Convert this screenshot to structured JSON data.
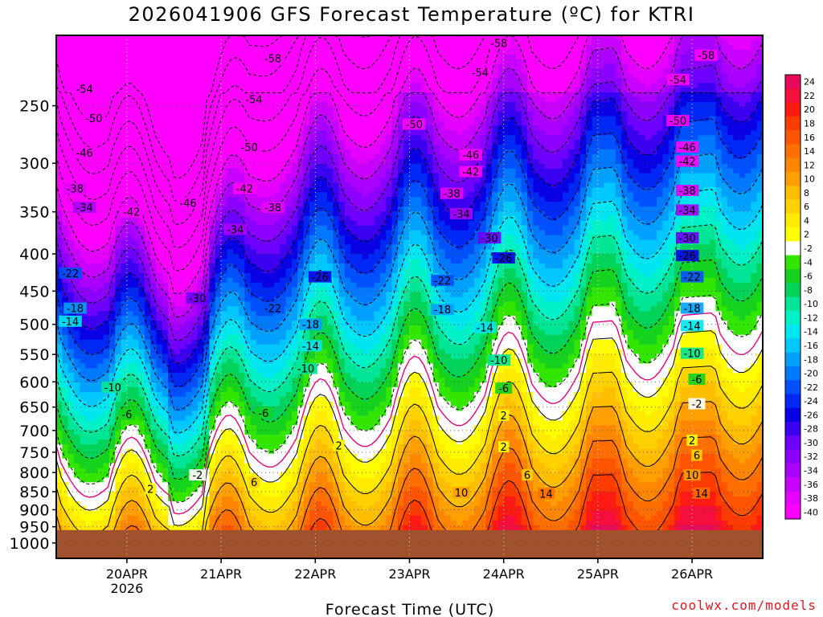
{
  "chart_data": {
    "type": "heatmap",
    "title": "2026041906 GFS Forecast Temperature (ºC) for KTRI",
    "xlabel": "Forecast Time (UTC)",
    "ylabel": "",
    "x_range": [
      "2026-04-19 06Z",
      "2026-04-26 18Z"
    ],
    "y_range_hPa": [
      1000,
      200
    ],
    "y_ticks": [
      "250",
      "300",
      "350",
      "400",
      "450",
      "500",
      "550",
      "600",
      "650",
      "700",
      "750",
      "800",
      "850",
      "900",
      "950",
      "1000"
    ],
    "x_ticks": [
      {
        "label": "20APR",
        "sublabel": "2026",
        "days": 0.75
      },
      {
        "label": "21APR",
        "days": 1.75
      },
      {
        "label": "22APR",
        "days": 2.75
      },
      {
        "label": "23APR",
        "days": 3.75
      },
      {
        "label": "24APR",
        "days": 4.75
      },
      {
        "label": "25APR",
        "days": 5.75
      },
      {
        "label": "26APR",
        "days": 6.75
      }
    ],
    "colorbar_levels": [
      "24",
      "22",
      "20",
      "18",
      "16",
      "14",
      "12",
      "10",
      "8",
      "6",
      "4",
      "2",
      "-2",
      "-4",
      "-6",
      "-8",
      "-10",
      "-12",
      "-14",
      "-16",
      "-18",
      "-20",
      "-22",
      "-24",
      "-26",
      "-28",
      "-30",
      "-32",
      "-34",
      "-36",
      "-38",
      "-40"
    ],
    "colorbar_colors": [
      "#e80a5a",
      "#f50f3c",
      "#ff1a14",
      "#ff3c00",
      "#ff5500",
      "#ff6e00",
      "#ff8700",
      "#ffa000",
      "#ffbe00",
      "#ffd200",
      "#ffeb00",
      "#ffff00",
      "#ffffff",
      "#33e600",
      "#14d21e",
      "#00d25a",
      "#00e696",
      "#00f0c8",
      "#00e6f0",
      "#00c8ff",
      "#00a0ff",
      "#0078ff",
      "#0050ff",
      "#0028f5",
      "#0a00e6",
      "#3c00f0",
      "#6e00ff",
      "#8c00ff",
      "#aa00ff",
      "#c800ff",
      "#e600ff",
      "#ff00ff"
    ],
    "colorbar_under_color": "#ff00ff",
    "ground_color": "#a0522d",
    "isotherm_labels": [
      {
        "t": "-58",
        "d": 2.3,
        "p": 215
      },
      {
        "t": "-58",
        "d": 4.7,
        "p": 205
      },
      {
        "t": "-58",
        "d": 6.9,
        "p": 213
      },
      {
        "t": "-54",
        "d": 0.3,
        "p": 237
      },
      {
        "t": "-54",
        "d": 2.1,
        "p": 245
      },
      {
        "t": "-54",
        "d": 4.5,
        "p": 225
      },
      {
        "t": "-54",
        "d": 6.6,
        "p": 230
      },
      {
        "t": "-50",
        "d": 0.4,
        "p": 260
      },
      {
        "t": "-50",
        "d": 3.8,
        "p": 265
      },
      {
        "t": "-50",
        "d": 6.6,
        "p": 262
      },
      {
        "t": "-50",
        "d": 2.05,
        "p": 285
      },
      {
        "t": "-46",
        "d": 0.3,
        "p": 290
      },
      {
        "t": "-46",
        "d": 4.4,
        "p": 292
      },
      {
        "t": "-46",
        "d": 6.7,
        "p": 285
      },
      {
        "t": "-42",
        "d": 2.0,
        "p": 325
      },
      {
        "t": "-42",
        "d": 4.4,
        "p": 308
      },
      {
        "t": "-42",
        "d": 6.7,
        "p": 298
      },
      {
        "t": "-42",
        "d": 0.8,
        "p": 350
      },
      {
        "t": "-46",
        "d": 1.4,
        "p": 340
      },
      {
        "t": "-38",
        "d": 0.2,
        "p": 325
      },
      {
        "t": "-38",
        "d": 2.3,
        "p": 345
      },
      {
        "t": "-38",
        "d": 4.2,
        "p": 330
      },
      {
        "t": "-38",
        "d": 6.7,
        "p": 327
      },
      {
        "t": "-34",
        "d": 0.3,
        "p": 345
      },
      {
        "t": "-34",
        "d": 1.9,
        "p": 370
      },
      {
        "t": "-34",
        "d": 4.3,
        "p": 352
      },
      {
        "t": "-34",
        "d": 6.7,
        "p": 348
      },
      {
        "t": "-30",
        "d": 4.6,
        "p": 380
      },
      {
        "t": "-30",
        "d": 6.7,
        "p": 380
      },
      {
        "t": "-26",
        "d": 2.8,
        "p": 430
      },
      {
        "t": "-26",
        "d": 4.75,
        "p": 405
      },
      {
        "t": "-26",
        "d": 6.7,
        "p": 402
      },
      {
        "t": "-22",
        "d": 0.15,
        "p": 425
      },
      {
        "t": "-22",
        "d": 4.1,
        "p": 435
      },
      {
        "t": "-22",
        "d": 6.75,
        "p": 430
      },
      {
        "t": "-30",
        "d": 1.5,
        "p": 460
      },
      {
        "t": "-22",
        "d": 2.3,
        "p": 475
      },
      {
        "t": "-18",
        "d": 0.2,
        "p": 475
      },
      {
        "t": "-18",
        "d": 2.7,
        "p": 500
      },
      {
        "t": "-18",
        "d": 4.1,
        "p": 477
      },
      {
        "t": "-18",
        "d": 6.75,
        "p": 475
      },
      {
        "t": "-14",
        "d": 0.15,
        "p": 495
      },
      {
        "t": "-14",
        "d": 2.7,
        "p": 535
      },
      {
        "t": "-14",
        "d": 4.55,
        "p": 505
      },
      {
        "t": "-14",
        "d": 6.75,
        "p": 502
      },
      {
        "t": "-10",
        "d": 2.65,
        "p": 575
      },
      {
        "t": "-10",
        "d": 4.7,
        "p": 560
      },
      {
        "t": "-10",
        "d": 6.75,
        "p": 548
      },
      {
        "t": "-10",
        "d": 0.6,
        "p": 610
      },
      {
        "t": "-6",
        "d": 0.75,
        "p": 665
      },
      {
        "t": "-6",
        "d": 2.2,
        "p": 662
      },
      {
        "t": "-6",
        "d": 4.75,
        "p": 612
      },
      {
        "t": "-6",
        "d": 6.8,
        "p": 595
      },
      {
        "t": "-2",
        "d": 1.5,
        "p": 806
      },
      {
        "t": "-2",
        "d": 6.8,
        "p": 643
      },
      {
        "t": "2",
        "d": 4.75,
        "p": 667
      },
      {
        "t": "2",
        "d": 3.0,
        "p": 734
      },
      {
        "t": "2",
        "d": 4.75,
        "p": 737
      },
      {
        "t": "2",
        "d": 6.75,
        "p": 722
      },
      {
        "t": "2",
        "d": 1.0,
        "p": 842
      },
      {
        "t": "6",
        "d": 2.1,
        "p": 824
      },
      {
        "t": "6",
        "d": 5.0,
        "p": 806
      },
      {
        "t": "6",
        "d": 6.8,
        "p": 757
      },
      {
        "t": "10",
        "d": 4.3,
        "p": 852
      },
      {
        "t": "10",
        "d": 6.75,
        "p": 806
      },
      {
        "t": "14",
        "d": 5.2,
        "p": 855
      },
      {
        "t": "14",
        "d": 6.85,
        "p": 854
      }
    ]
  }
}
